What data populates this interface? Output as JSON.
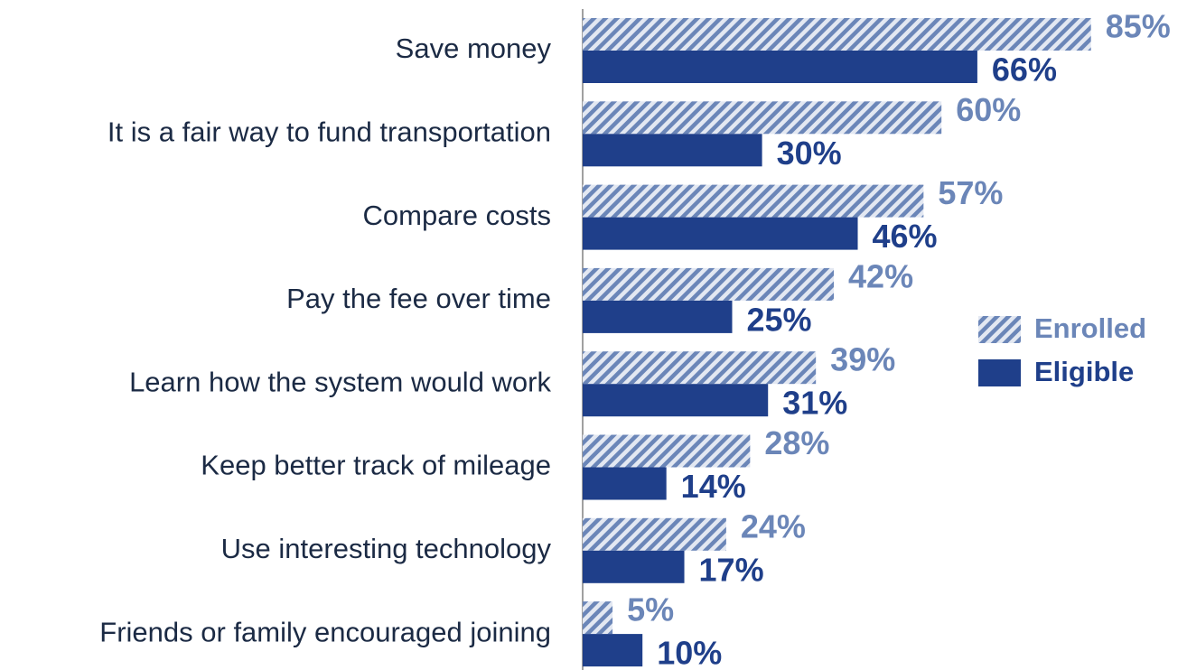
{
  "chart_data": {
    "type": "hbar",
    "categories": [
      "Save money",
      "It is a fair way to fund transportation",
      "Compare costs",
      "Pay the fee over time",
      "Learn how the system would work",
      "Keep better track of mileage",
      "Use interesting technology",
      "Friends or family encouraged joining"
    ],
    "series": [
      {
        "name": "Enrolled",
        "color": "#6b86b8",
        "pattern": "hatch",
        "values": [
          85,
          60,
          57,
          42,
          39,
          28,
          24,
          5
        ],
        "value_labels": [
          "85%",
          "60%",
          "57%",
          "42%",
          "39%",
          "28%",
          "24%",
          "5%"
        ]
      },
      {
        "name": "Eligible",
        "color": "#1f3f8a",
        "pattern": "solid",
        "values": [
          66,
          30,
          46,
          25,
          31,
          14,
          17,
          10
        ],
        "value_labels": [
          "66%",
          "30%",
          "46%",
          "25%",
          "31%",
          "14%",
          "17%",
          "10%"
        ]
      }
    ],
    "xlim": [
      0,
      100
    ],
    "legend": "right"
  }
}
